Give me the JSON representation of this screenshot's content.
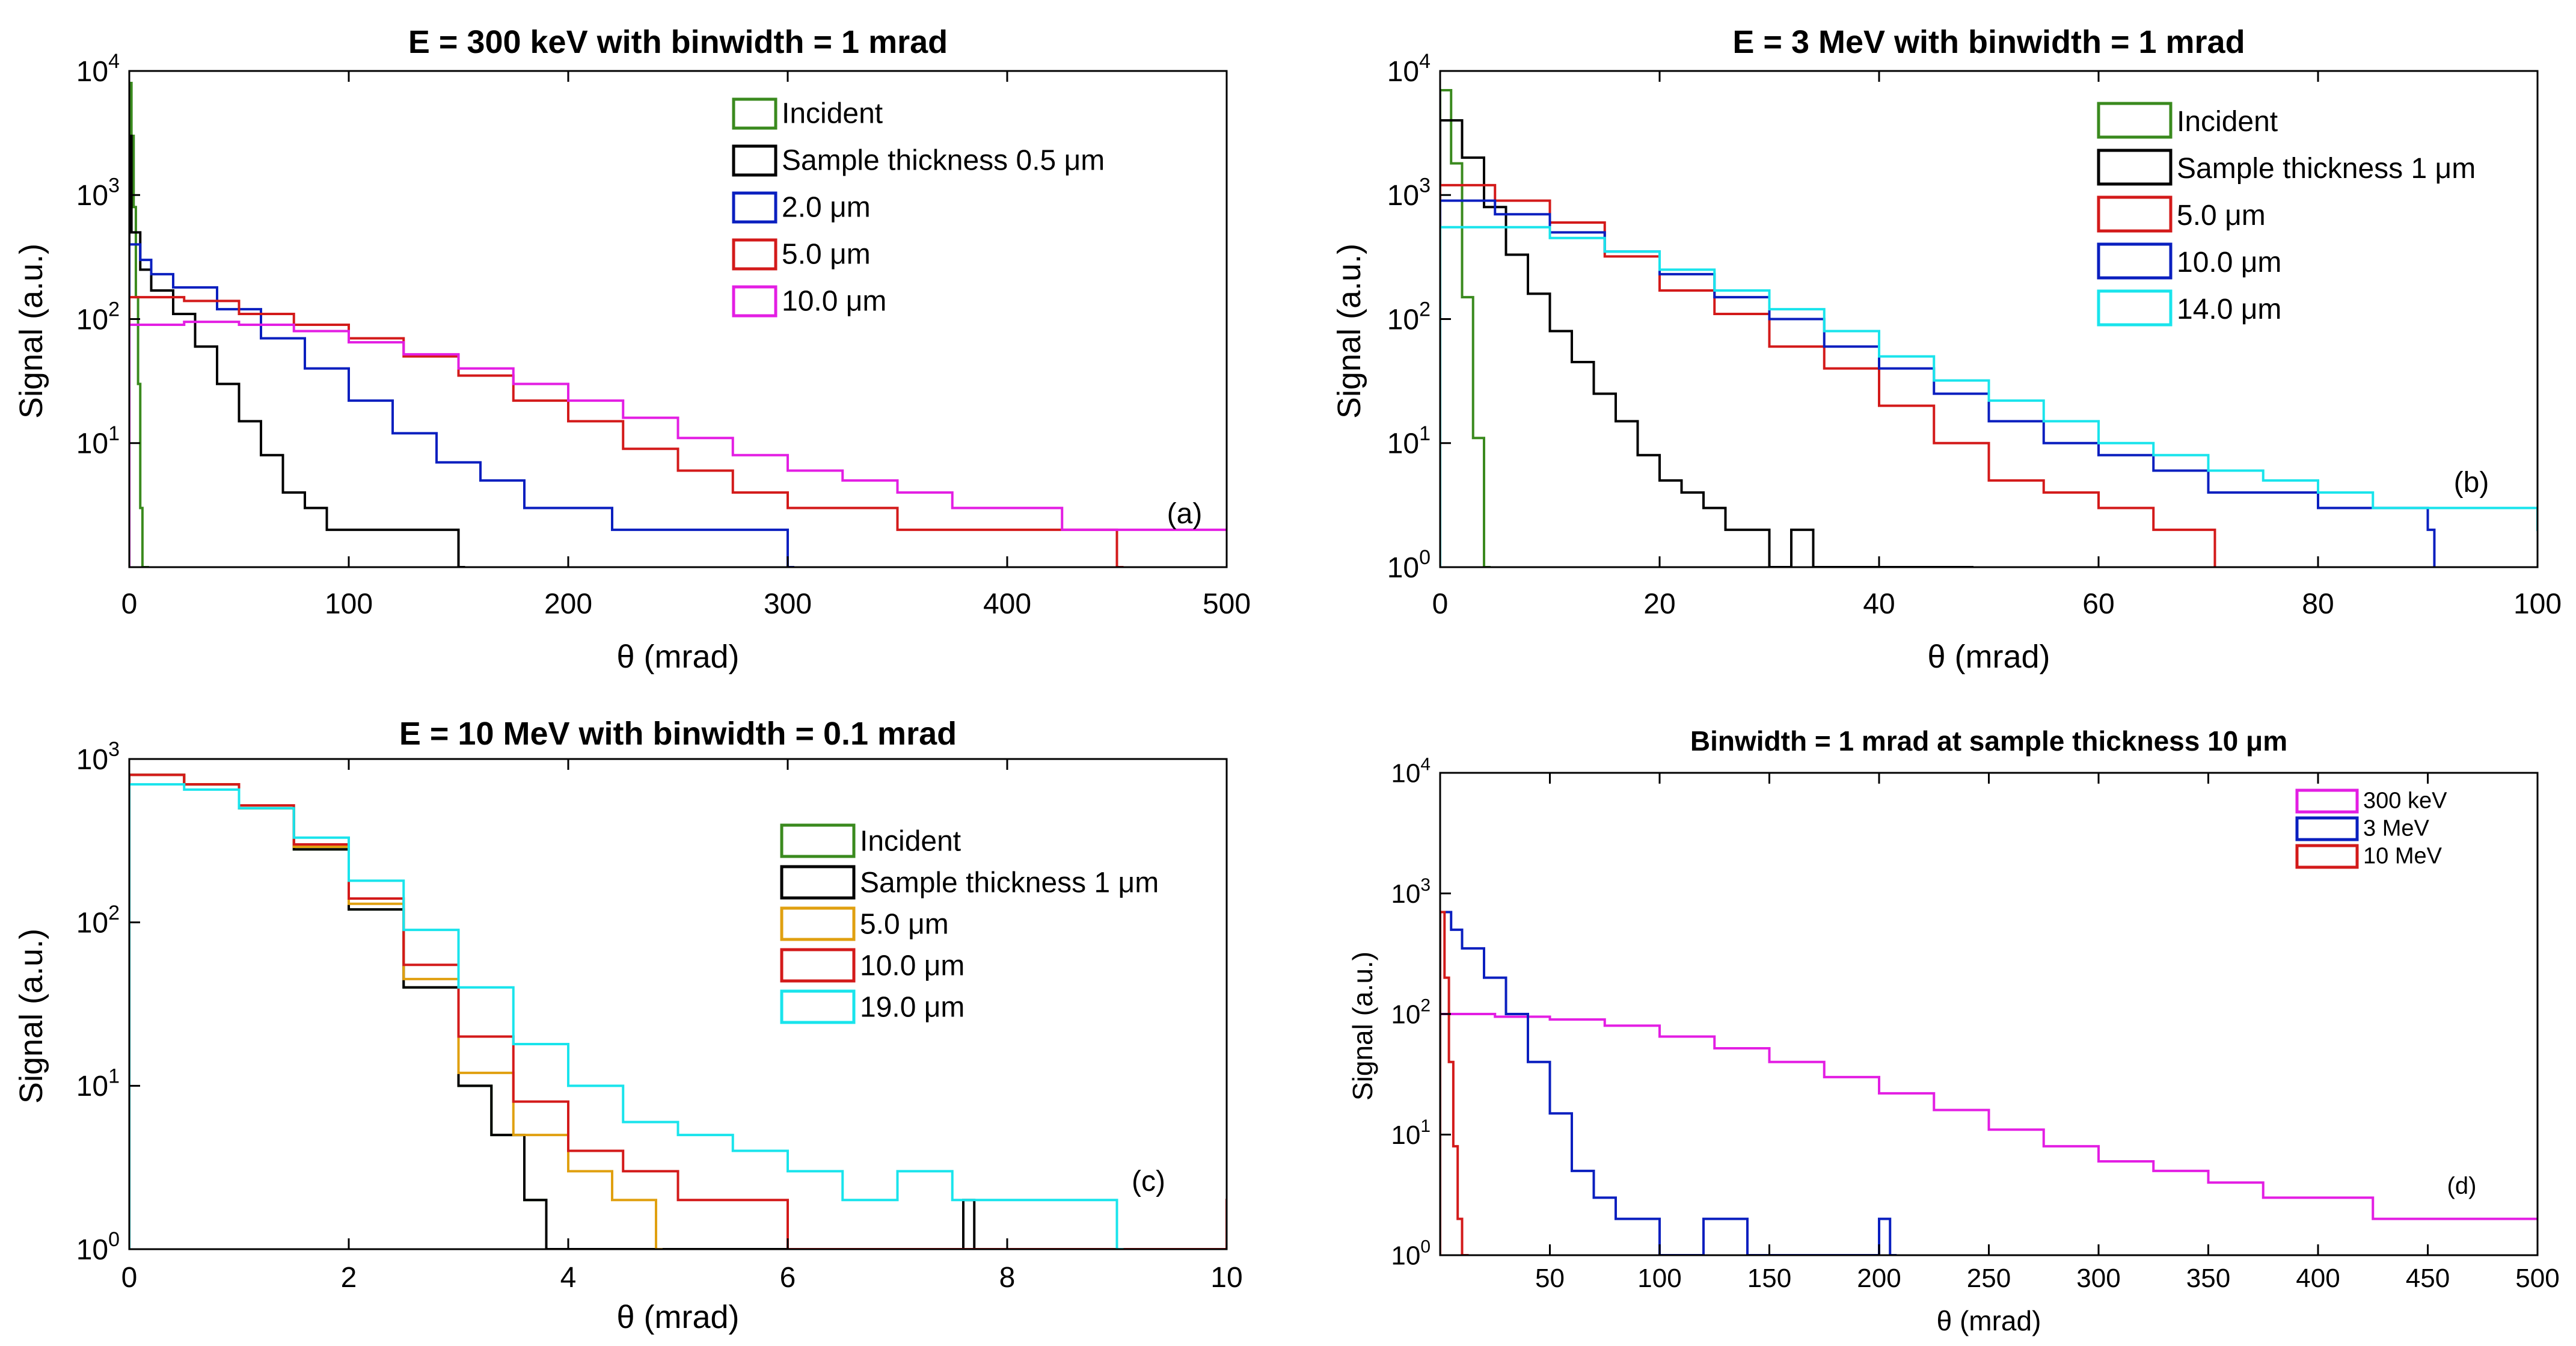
{
  "figure": {
    "panels": [
      {
        "id": "a",
        "title": "E = 300 keV with binwidth = 1 mrad",
        "xlabel": "θ (mrad)",
        "ylabel": "Signal (a.u.)",
        "panel_label": "(a)",
        "x_ticks": [
          "0",
          "100",
          "200",
          "300",
          "400",
          "500"
        ],
        "legend": [
          {
            "label": "Incident",
            "color": "#3a8a1e"
          },
          {
            "label": "Sample thickness 0.5 μm",
            "color": "#000000"
          },
          {
            "label": "2.0 μm",
            "color": "#0a1fbf"
          },
          {
            "label": "5.0 μm",
            "color": "#d31a1a"
          },
          {
            "label": "10.0 μm",
            "color": "#e31ee3"
          }
        ]
      },
      {
        "id": "b",
        "title": "E = 3 MeV with binwidth = 1 mrad",
        "xlabel": "θ (mrad)",
        "ylabel": "Signal (a.u.)",
        "panel_label": "(b)",
        "x_ticks": [
          "0",
          "20",
          "40",
          "60",
          "80",
          "100"
        ],
        "legend": [
          {
            "label": "Incident",
            "color": "#3a8a1e"
          },
          {
            "label": "Sample thickness 1 μm",
            "color": "#000000"
          },
          {
            "label": "5.0 μm",
            "color": "#d31a1a"
          },
          {
            "label": "10.0 μm",
            "color": "#0a1fbf"
          },
          {
            "label": "14.0 μm",
            "color": "#19e4ec"
          }
        ]
      },
      {
        "id": "c",
        "title": "E = 10 MeV with binwidth = 0.1 mrad",
        "xlabel": "θ (mrad)",
        "ylabel": "Signal (a.u.)",
        "panel_label": "(c)",
        "x_ticks": [
          "0",
          "2",
          "4",
          "6",
          "8",
          "10"
        ],
        "legend": [
          {
            "label": "Incident",
            "color": "#3a8a1e"
          },
          {
            "label": "Sample thickness 1 μm",
            "color": "#000000"
          },
          {
            "label": "5.0 μm",
            "color": "#e0a010"
          },
          {
            "label": "10.0 μm",
            "color": "#d31a1a"
          },
          {
            "label": "19.0 μm",
            "color": "#19e4ec"
          }
        ]
      },
      {
        "id": "d",
        "title": "Binwidth = 1 mrad at sample thickness 10 μm",
        "xlabel": "θ (mrad)",
        "ylabel": "Signal (a.u.)",
        "panel_label": "(d)",
        "x_ticks": [
          "50",
          "100",
          "150",
          "200",
          "250",
          "300",
          "350",
          "400",
          "450",
          "500"
        ],
        "legend": [
          {
            "label": "300 keV",
            "color": "#e31ee3"
          },
          {
            "label": "3 MeV",
            "color": "#0a1fbf"
          },
          {
            "label": "10 MeV",
            "color": "#d31a1a"
          }
        ]
      }
    ]
  },
  "chart_data": [
    {
      "type": "line",
      "title": "E = 300 keV with binwidth = 1 mrad",
      "xlabel": "θ (mrad)",
      "ylabel": "Signal (a.u.)",
      "xlim": [
        0,
        500
      ],
      "ylim": [
        1,
        10000
      ],
      "yscale": "log",
      "y_ticks": [
        10,
        100,
        1000,
        10000
      ],
      "legend_position": "top-right",
      "series": [
        {
          "name": "Incident",
          "color": "#3a8a1e",
          "x": [
            0,
            1,
            2,
            3,
            4,
            5,
            6
          ],
          "y": [
            8000,
            3000,
            800,
            150,
            30,
            3,
            1
          ]
        },
        {
          "name": "Sample thickness 0.5 μm",
          "color": "#000000",
          "x": [
            0,
            1,
            5,
            10,
            20,
            30,
            40,
            50,
            60,
            70,
            80,
            90,
            100,
            110,
            120,
            130,
            140,
            150
          ],
          "y": [
            3000,
            500,
            250,
            170,
            110,
            60,
            30,
            15,
            8,
            4,
            3,
            2,
            2,
            2,
            2,
            2,
            2,
            1
          ]
        },
        {
          "name": "2.0 μm",
          "color": "#0a1fbf",
          "x": [
            0,
            5,
            10,
            20,
            40,
            60,
            80,
            100,
            120,
            140,
            160,
            180,
            200,
            220,
            240,
            260,
            280,
            300
          ],
          "y": [
            400,
            300,
            230,
            180,
            120,
            70,
            40,
            22,
            12,
            7,
            5,
            3,
            3,
            2,
            2,
            2,
            2,
            1
          ]
        },
        {
          "name": "5.0 μm",
          "color": "#d31a1a",
          "x": [
            0,
            10,
            25,
            50,
            75,
            100,
            125,
            150,
            175,
            200,
            225,
            250,
            275,
            300,
            325,
            350,
            375,
            400,
            425,
            450
          ],
          "y": [
            150,
            150,
            140,
            110,
            90,
            70,
            50,
            35,
            22,
            15,
            9,
            6,
            4,
            3,
            3,
            2,
            2,
            2,
            2,
            1
          ]
        },
        {
          "name": "10.0 μm",
          "color": "#e31ee3",
          "x": [
            0,
            25,
            50,
            75,
            100,
            125,
            150,
            175,
            200,
            225,
            250,
            275,
            300,
            325,
            350,
            375,
            400,
            425,
            450,
            475,
            500
          ],
          "y": [
            90,
            95,
            90,
            80,
            65,
            52,
            40,
            30,
            22,
            16,
            11,
            8,
            6,
            5,
            4,
            3,
            3,
            2,
            2,
            2,
            2
          ]
        }
      ]
    },
    {
      "type": "line",
      "title": "E = 3 MeV with binwidth = 1 mrad",
      "xlabel": "θ (mrad)",
      "ylabel": "Signal (a.u.)",
      "xlim": [
        0,
        100
      ],
      "ylim": [
        1,
        10000
      ],
      "yscale": "log",
      "y_ticks": [
        1,
        10,
        100,
        1000,
        10000
      ],
      "legend_position": "top-right",
      "series": [
        {
          "name": "Incident",
          "color": "#3a8a1e",
          "x": [
            0,
            1,
            2,
            3,
            4
          ],
          "y": [
            7000,
            1800,
            150,
            11,
            1
          ]
        },
        {
          "name": "Sample thickness 1 μm",
          "color": "#000000",
          "x": [
            0,
            2,
            4,
            6,
            8,
            10,
            12,
            14,
            16,
            18,
            20,
            22,
            24,
            26,
            28,
            30,
            32,
            34,
            36,
            38,
            40,
            42,
            44,
            46,
            48
          ],
          "y": [
            4000,
            2000,
            800,
            330,
            160,
            80,
            45,
            25,
            15,
            8,
            5,
            4,
            3,
            2,
            2,
            1,
            2,
            1,
            1,
            1,
            1,
            1,
            1,
            1,
            1
          ]
        },
        {
          "name": "5.0 μm",
          "color": "#d31a1a",
          "x": [
            0,
            5,
            10,
            15,
            20,
            25,
            30,
            35,
            40,
            45,
            50,
            55,
            60,
            65,
            70
          ],
          "y": [
            1200,
            900,
            600,
            320,
            170,
            110,
            60,
            40,
            20,
            10,
            5,
            4,
            3,
            2,
            2
          ]
        },
        {
          "name": "10.0 μm",
          "color": "#0a1fbf",
          "x": [
            0,
            5,
            10,
            15,
            20,
            25,
            30,
            35,
            40,
            45,
            50,
            55,
            60,
            65,
            70,
            75,
            80,
            85,
            90
          ],
          "y": [
            900,
            700,
            500,
            350,
            230,
            150,
            100,
            60,
            40,
            25,
            15,
            10,
            8,
            6,
            4,
            4,
            3,
            3,
            2
          ]
        },
        {
          "name": "14.0 μm",
          "color": "#19e4ec",
          "x": [
            0,
            5,
            10,
            15,
            20,
            25,
            30,
            35,
            40,
            45,
            50,
            55,
            60,
            65,
            70,
            75,
            80,
            85,
            90,
            95,
            100
          ],
          "y": [
            550,
            550,
            450,
            350,
            250,
            170,
            120,
            80,
            50,
            32,
            22,
            15,
            10,
            8,
            6,
            5,
            4,
            3,
            3,
            3,
            2
          ]
        }
      ]
    },
    {
      "type": "line",
      "title": "E = 10 MeV with binwidth = 0.1 mrad",
      "xlabel": "θ (mrad)",
      "ylabel": "Signal (a.u.)",
      "xlim": [
        0,
        10
      ],
      "ylim": [
        1,
        1000
      ],
      "yscale": "log",
      "y_ticks": [
        1,
        10,
        100,
        1000
      ],
      "legend_position": "right",
      "series": [
        {
          "name": "Incident",
          "color": "#3a8a1e",
          "x": [
            0,
            0.5,
            1,
            1.5,
            2,
            2.5,
            3,
            3.3,
            3.6,
            3.8
          ],
          "y": [
            800,
            700,
            500,
            280,
            120,
            40,
            10,
            5,
            2,
            1
          ]
        },
        {
          "name": "Sample thickness 1 μm",
          "color": "#000000",
          "x": [
            0,
            0.5,
            1,
            1.5,
            2,
            2.5,
            3,
            3.3,
            3.6,
            3.8,
            7.6,
            7.7
          ],
          "y": [
            800,
            700,
            500,
            280,
            120,
            40,
            10,
            5,
            2,
            1,
            2,
            1
          ]
        },
        {
          "name": "5.0 μm",
          "color": "#e0a010",
          "x": [
            0,
            0.5,
            1,
            1.5,
            2,
            2.5,
            3,
            3.5,
            4,
            4.4,
            4.8
          ],
          "y": [
            800,
            700,
            500,
            290,
            130,
            45,
            12,
            5,
            3,
            2,
            1
          ]
        },
        {
          "name": "10.0 μm",
          "color": "#d31a1a",
          "x": [
            0,
            0.5,
            1,
            1.5,
            2,
            2.5,
            3,
            3.5,
            4,
            4.5,
            5,
            5.5,
            6,
            10
          ],
          "y": [
            800,
            700,
            520,
            300,
            140,
            55,
            20,
            8,
            4,
            3,
            2,
            2,
            1,
            2
          ]
        },
        {
          "name": "19.0 μm",
          "color": "#19e4ec",
          "x": [
            0,
            0.5,
            1,
            1.5,
            2,
            2.5,
            3,
            3.5,
            4,
            4.5,
            5,
            5.5,
            6,
            6.5,
            7,
            7.5,
            8,
            8.5,
            9
          ],
          "y": [
            700,
            650,
            500,
            330,
            180,
            90,
            40,
            18,
            10,
            6,
            5,
            4,
            3,
            2,
            3,
            2,
            2,
            2,
            1
          ]
        }
      ]
    },
    {
      "type": "line",
      "title": "Binwidth = 1 mrad at sample thickness 10 μm",
      "xlabel": "θ (mrad)",
      "ylabel": "Signal (a.u.)",
      "xlim": [
        0,
        500
      ],
      "ylim": [
        1,
        10000
      ],
      "yscale": "log",
      "y_ticks": [
        1,
        10,
        100,
        1000,
        10000
      ],
      "legend_position": "top-right",
      "series": [
        {
          "name": "300 keV",
          "color": "#e31ee3",
          "x": [
            0,
            25,
            50,
            75,
            100,
            125,
            150,
            175,
            200,
            225,
            250,
            275,
            300,
            325,
            350,
            375,
            400,
            425,
            450,
            475,
            500
          ],
          "y": [
            100,
            95,
            90,
            80,
            65,
            52,
            40,
            30,
            22,
            16,
            11,
            8,
            6,
            5,
            4,
            3,
            3,
            2,
            2,
            2,
            2
          ]
        },
        {
          "name": "3 MeV",
          "color": "#0a1fbf",
          "x": [
            0,
            5,
            10,
            20,
            30,
            40,
            50,
            60,
            70,
            80,
            90,
            100,
            120,
            140,
            160,
            200,
            205
          ],
          "y": [
            700,
            500,
            350,
            200,
            100,
            40,
            15,
            5,
            3,
            2,
            2,
            1,
            2,
            1,
            1,
            2,
            1
          ]
        },
        {
          "name": "10 MeV",
          "color": "#d31a1a",
          "x": [
            0,
            2,
            4,
            6,
            8,
            10
          ],
          "y": [
            700,
            200,
            40,
            8,
            2,
            1
          ]
        }
      ]
    }
  ]
}
